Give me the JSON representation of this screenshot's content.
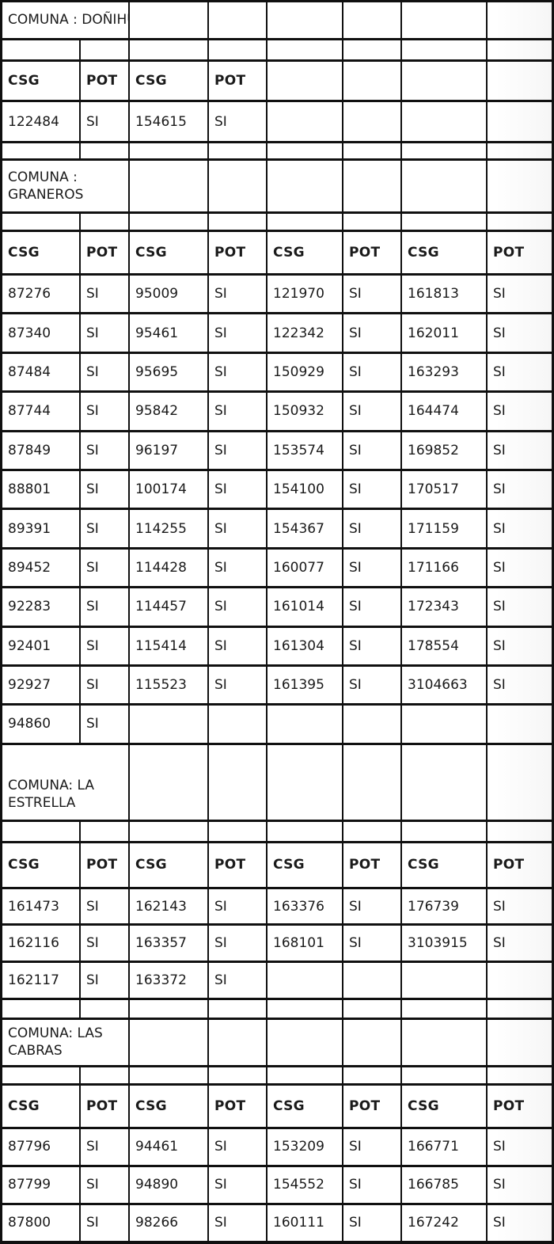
{
  "document_kind": "scanned registry table",
  "colors": {
    "background": "#ffffff",
    "border": "#101010",
    "text": "#1a1a1a"
  },
  "affirmative_value": "SI",
  "sections": [
    {
      "id": "donihue",
      "title": "COMUNA : DOÑIHUE",
      "title_lines": [
        "COMUNA : DOÑIHUE"
      ],
      "header": [
        "CSG",
        "POT",
        "CSG",
        "POT",
        "",
        "",
        "",
        ""
      ],
      "rows": [
        [
          "122484",
          "SI",
          "154615",
          "SI",
          "",
          "",
          "",
          ""
        ]
      ]
    },
    {
      "id": "graneros",
      "title": "COMUNA : GRANEROS",
      "title_lines": [
        "COMUNA :",
        "GRANEROS"
      ],
      "header": [
        "CSG",
        "POT",
        "CSG",
        "POT",
        "CSG",
        "POT",
        "CSG",
        "POT"
      ],
      "rows": [
        [
          "87276",
          "SI",
          "95009",
          "SI",
          "121970",
          "SI",
          "161813",
          "SI"
        ],
        [
          "87340",
          "SI",
          "95461",
          "SI",
          "122342",
          "SI",
          "162011",
          "SI"
        ],
        [
          "87484",
          "SI",
          "95695",
          "SI",
          "150929",
          "SI",
          "163293",
          "SI"
        ],
        [
          "87744",
          "SI",
          "95842",
          "SI",
          "150932",
          "SI",
          "164474",
          "SI"
        ],
        [
          "87849",
          "SI",
          "96197",
          "SI",
          "153574",
          "SI",
          "169852",
          "SI"
        ],
        [
          "88801",
          "SI",
          "100174",
          "SI",
          "154100",
          "SI",
          "170517",
          "SI"
        ],
        [
          "89391",
          "SI",
          "114255",
          "SI",
          "154367",
          "SI",
          "171159",
          "SI"
        ],
        [
          "89452",
          "SI",
          "114428",
          "SI",
          "160077",
          "SI",
          "171166",
          "SI"
        ],
        [
          "92283",
          "SI",
          "114457",
          "SI",
          "161014",
          "SI",
          "172343",
          "SI"
        ],
        [
          "92401",
          "SI",
          "115414",
          "SI",
          "161304",
          "SI",
          "178554",
          "SI"
        ],
        [
          "92927",
          "SI",
          "115523",
          "SI",
          "161395",
          "SI",
          "3104663",
          "SI"
        ],
        [
          "94860",
          "SI",
          "",
          "",
          "",
          "",
          "",
          ""
        ]
      ]
    },
    {
      "id": "la-estrella",
      "title": "COMUNA: LA ESTRELLA",
      "title_lines": [
        "COMUNA: LA",
        "ESTRELLA"
      ],
      "header": [
        "CSG",
        "POT",
        "CSG",
        "POT",
        "CSG",
        "POT",
        "CSG",
        "POT"
      ],
      "rows": [
        [
          "161473",
          "SI",
          "162143",
          "SI",
          "163376",
          "SI",
          "176739",
          "SI"
        ],
        [
          "162116",
          "SI",
          "163357",
          "SI",
          "168101",
          "SI",
          "3103915",
          "SI"
        ],
        [
          "162117",
          "SI",
          "163372",
          "SI",
          "",
          "",
          "",
          ""
        ]
      ]
    },
    {
      "id": "las-cabras",
      "title": "COMUNA: LAS CABRAS",
      "title_lines": [
        "COMUNA: LAS",
        "CABRAS"
      ],
      "header": [
        "CSG",
        "POT",
        "CSG",
        "POT",
        "CSG",
        "POT",
        "CSG",
        "POT"
      ],
      "rows": [
        [
          "87796",
          "SI",
          "94461",
          "SI",
          "153209",
          "SI",
          "166771",
          "SI"
        ],
        [
          "87799",
          "SI",
          "94890",
          "SI",
          "154552",
          "SI",
          "166785",
          "SI"
        ],
        [
          "87800",
          "SI",
          "98266",
          "SI",
          "160111",
          "SI",
          "167242",
          "SI"
        ]
      ]
    }
  ]
}
